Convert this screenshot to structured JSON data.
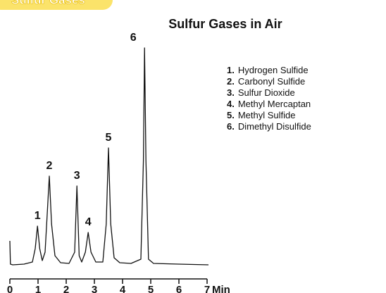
{
  "chart_data": {
    "type": "line",
    "badge": "Sulfur Gases",
    "title": "Sulfur Gases in Air",
    "xlabel": "Min",
    "xlim": [
      0,
      7
    ],
    "xticks": [
      0,
      1,
      2,
      3,
      4,
      5,
      6,
      7
    ],
    "ylim": [
      0,
      320
    ],
    "color": "#111111",
    "peak_labels": [
      "1",
      "2",
      "3",
      "4",
      "5",
      "6"
    ],
    "legend": [
      {
        "number": "1.",
        "name": "Hydrogen Sulfide"
      },
      {
        "number": "2.",
        "name": "Carbonyl Sulfide"
      },
      {
        "number": "3.",
        "name": "Sulfur Dioxide"
      },
      {
        "number": "4.",
        "name": "Methyl Mercaptan"
      },
      {
        "number": "5.",
        "name": "Methyl Sulfide"
      },
      {
        "number": "6.",
        "name": "Dimethyl Disulfide"
      }
    ],
    "x": [
      0,
      0.02,
      0.1,
      0.5,
      0.8,
      0.9,
      0.98,
      1.06,
      1.15,
      1.25,
      1.32,
      1.4,
      1.48,
      1.6,
      1.8,
      2.1,
      2.3,
      2.38,
      2.46,
      2.55,
      2.68,
      2.78,
      2.88,
      3.05,
      3.3,
      3.42,
      3.5,
      3.58,
      3.7,
      3.9,
      4.3,
      4.65,
      4.74,
      4.78,
      4.83,
      4.92,
      5.1,
      6,
      7.05
    ],
    "values": [
      36,
      3,
      2,
      3,
      6,
      25,
      57,
      25,
      8,
      20,
      70,
      128,
      60,
      15,
      5,
      4,
      20,
      114,
      15,
      6,
      20,
      48,
      20,
      6,
      6,
      60,
      168,
      60,
      12,
      5,
      4,
      10,
      150,
      310,
      150,
      10,
      4,
      3,
      2
    ]
  }
}
